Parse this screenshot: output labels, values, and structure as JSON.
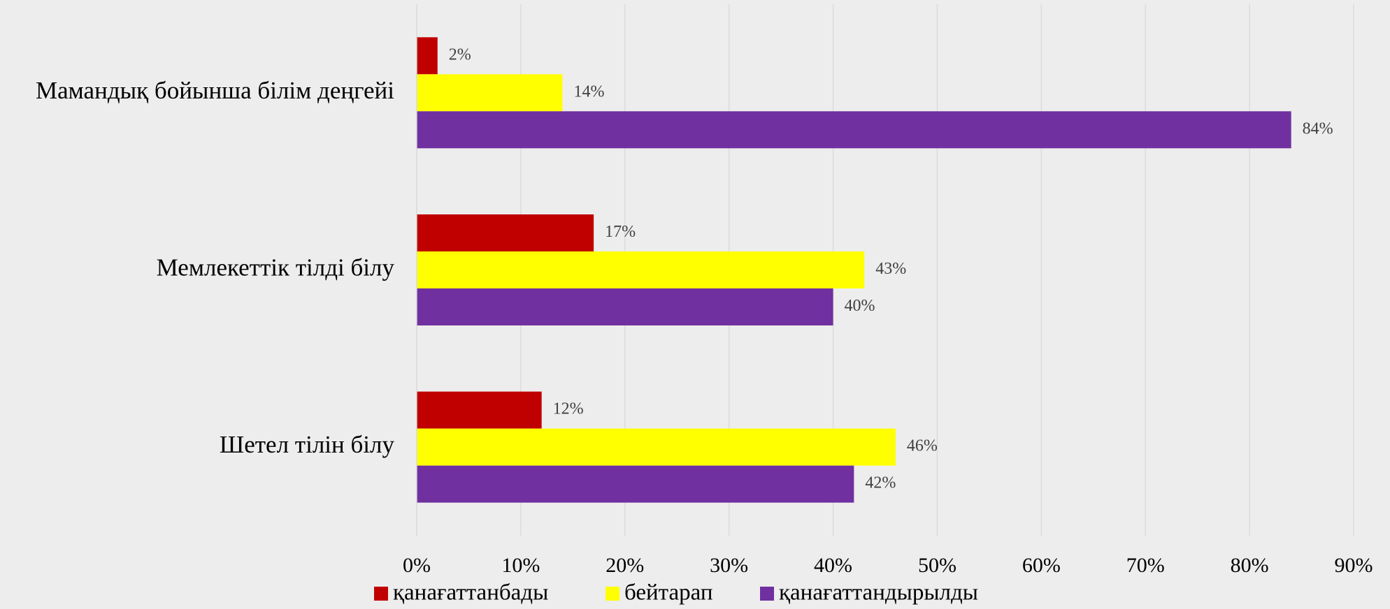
{
  "chart_data": {
    "type": "bar",
    "orientation": "horizontal",
    "categories": [
      "Мамандық бойынша білім деңгейі",
      "Мемлекеттік тілді білу",
      "Шетел тілін білу"
    ],
    "series": [
      {
        "name": "қанағаттанбады",
        "color": "#c00000",
        "values": [
          2,
          17,
          12
        ],
        "value_labels": [
          "2%",
          "17%",
          "12%"
        ]
      },
      {
        "name": "бейтарап",
        "color": "#ffff00",
        "values": [
          14,
          43,
          46
        ],
        "value_labels": [
          "14%",
          "43%",
          "46%"
        ]
      },
      {
        "name": "қанағаттандырылды",
        "color": "#7030a0",
        "values": [
          84,
          40,
          42
        ],
        "value_labels": [
          "84%",
          "40%",
          "42%"
        ]
      }
    ],
    "xlim": [
      0,
      90
    ],
    "xticks": [
      {
        "value": 0,
        "label": "0%"
      },
      {
        "value": 10,
        "label": "10%"
      },
      {
        "value": 20,
        "label": "20%"
      },
      {
        "value": 30,
        "label": "30%"
      },
      {
        "value": 40,
        "label": "40%"
      },
      {
        "value": 50,
        "label": "50%"
      },
      {
        "value": 60,
        "label": "60%"
      },
      {
        "value": 70,
        "label": "70%"
      },
      {
        "value": 80,
        "label": "80%"
      },
      {
        "value": 90,
        "label": "90%"
      }
    ],
    "grid": true,
    "legend": "bottom"
  }
}
